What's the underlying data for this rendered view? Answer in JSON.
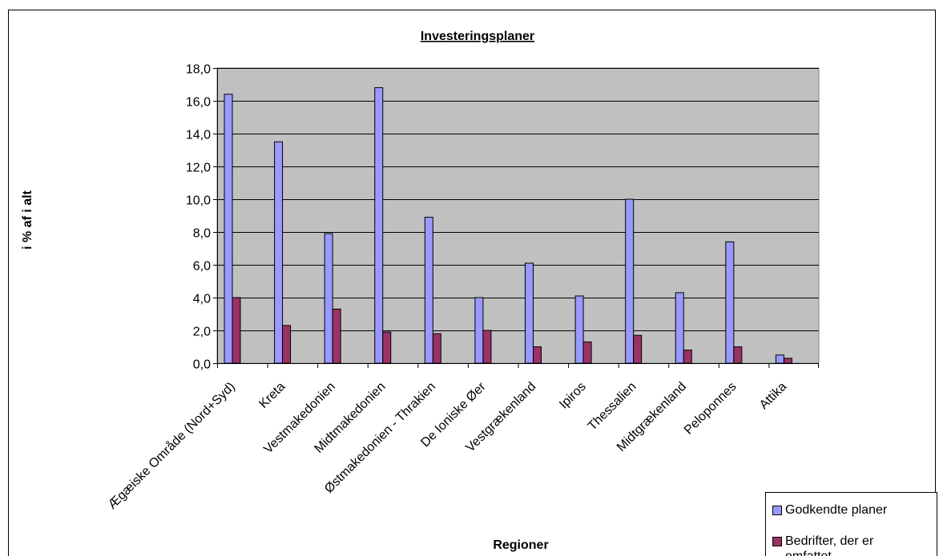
{
  "chart_data": {
    "type": "bar",
    "title": "Investeringsplaner",
    "xlabel": "Regioner",
    "ylabel": "i % af i alt",
    "ylim": [
      0,
      18
    ],
    "ytick_step": 2,
    "ytick_labels": [
      "0,0",
      "2,0",
      "4,0",
      "6,0",
      "8,0",
      "10,0",
      "12,0",
      "14,0",
      "16,0",
      "18,0"
    ],
    "grid": true,
    "legend_position": "bottom-right",
    "categories": [
      "Ægæiske Område (Nord+Syd)",
      "Kreta",
      "Vestmakedonien",
      "Midtmakedonien",
      "Østmakedonien - Thrakien",
      "De Ioniske Øer",
      "Vestgrækenland",
      "Ipiros",
      "Thessalien",
      "Midtgrækenland",
      "Peloponnes",
      "Attika"
    ],
    "series": [
      {
        "name": "Godkendte planer",
        "color": "#9999FF",
        "values": [
          16.4,
          13.5,
          7.9,
          16.8,
          8.9,
          4.0,
          6.1,
          4.1,
          10.0,
          4.3,
          7.4,
          0.5
        ]
      },
      {
        "name": "Bedrifter, der er omfattet",
        "color": "#993366",
        "values": [
          4.0,
          2.3,
          3.3,
          1.9,
          1.8,
          2.0,
          1.0,
          1.3,
          1.7,
          0.8,
          1.0,
          0.3
        ]
      }
    ],
    "plot_background": "#C0C0C0"
  }
}
